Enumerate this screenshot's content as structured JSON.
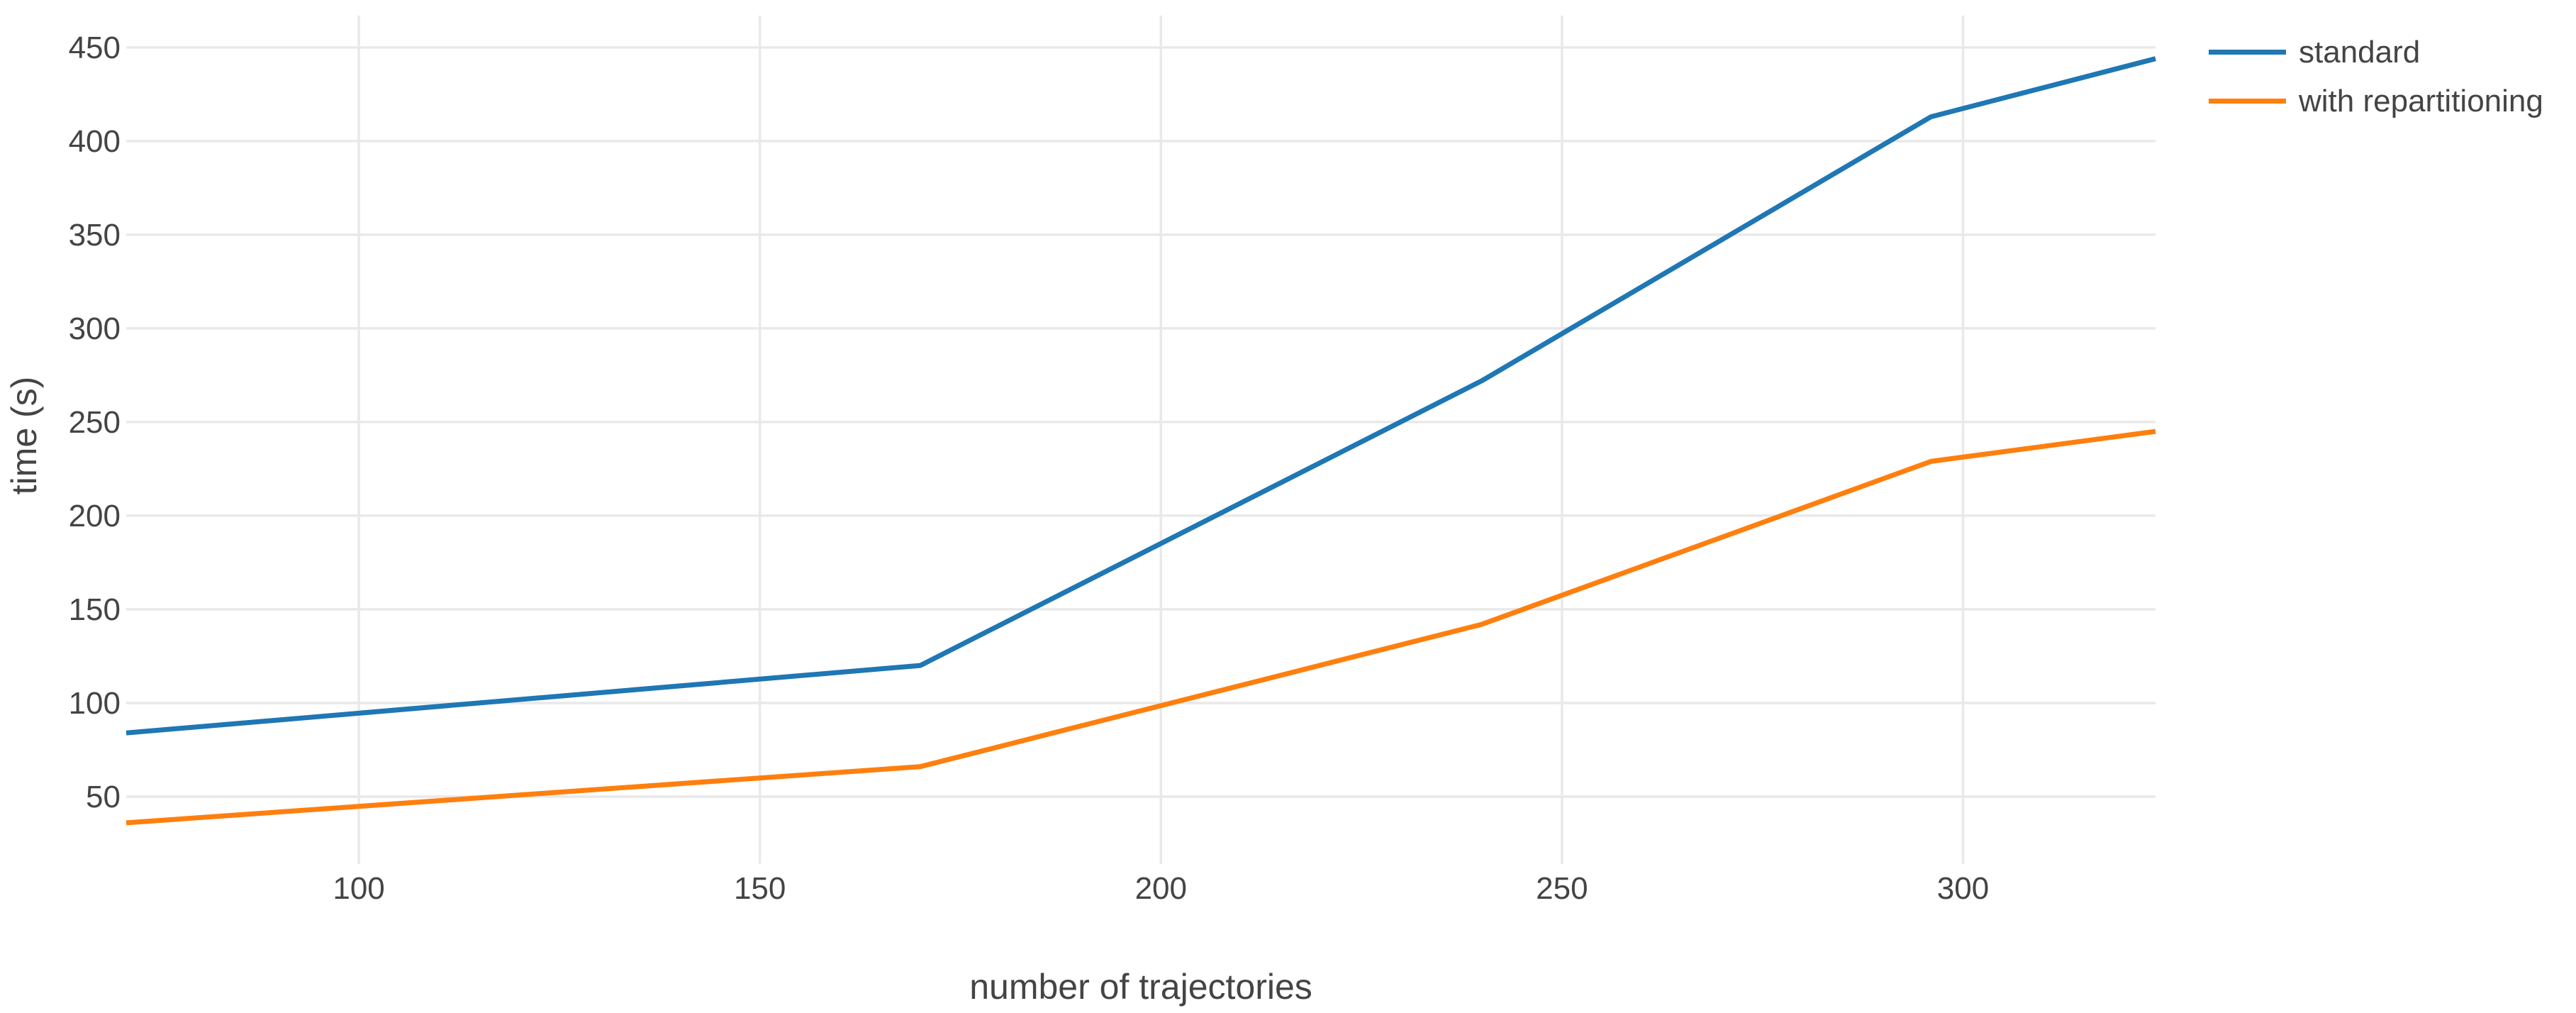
{
  "figure": {
    "background": "#ffffff",
    "text_color": "#444444",
    "grid_color": "#e9e9e9"
  },
  "chart_data": {
    "type": "line",
    "title": "",
    "xlabel": "number of trajectories",
    "ylabel": "time (s)",
    "x_ticks": [
      100,
      150,
      200,
      250,
      300
    ],
    "y_ticks": [
      50,
      100,
      150,
      200,
      250,
      300,
      350,
      400,
      450
    ],
    "xlim": [
      71,
      324
    ],
    "ylim": [
      14,
      467
    ],
    "grid": true,
    "legend_position": "top-right outside plot",
    "series": [
      {
        "name": "standard",
        "color": "#1f77b4",
        "x": [
          71,
          170,
          240,
          296,
          324
        ],
        "y": [
          84,
          120,
          272,
          413,
          444
        ]
      },
      {
        "name": "with repartitioning",
        "color": "#ff7f0e",
        "x": [
          71,
          170,
          240,
          296,
          324
        ],
        "y": [
          36,
          66,
          142,
          229,
          245
        ]
      }
    ]
  }
}
